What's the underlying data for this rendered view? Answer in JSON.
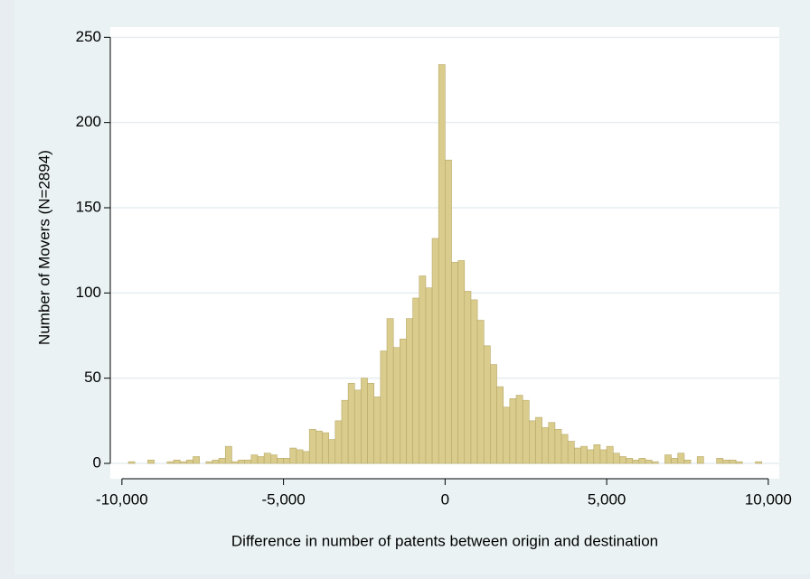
{
  "chart_data": {
    "type": "histogram",
    "x_label": "Difference in number of patents between origin and destination",
    "y_label": "Number of Movers (N=2894)",
    "bins": [
      -10000,
      -9800,
      -9600,
      -9400,
      -9200,
      -9000,
      -8800,
      -8600,
      -8400,
      -8200,
      -8000,
      -7800,
      -7600,
      -7400,
      -7200,
      -7000,
      -6800,
      -6600,
      -6400,
      -6200,
      -6000,
      -5800,
      -5600,
      -5400,
      -5200,
      -5000,
      -4800,
      -4600,
      -4400,
      -4200,
      -4000,
      -3800,
      -3600,
      -3400,
      -3200,
      -3000,
      -2800,
      -2600,
      -2400,
      -2200,
      -2000,
      -1800,
      -1600,
      -1400,
      -1200,
      -1000,
      -800,
      -600,
      -400,
      -200,
      0,
      200,
      400,
      600,
      800,
      1000,
      1200,
      1400,
      1600,
      1800,
      2000,
      2200,
      2400,
      2600,
      2800,
      3000,
      3200,
      3400,
      3600,
      3800,
      4000,
      4200,
      4400,
      4600,
      4800,
      5000,
      5200,
      5400,
      5600,
      5800,
      6000,
      6200,
      6400,
      6600,
      6800,
      7000,
      7200,
      7400,
      7600,
      7800,
      8000,
      8200,
      8400,
      8600,
      8800,
      9000,
      9200,
      9400,
      9600,
      9800,
      10000
    ],
    "counts": [
      0,
      1,
      0,
      0,
      2,
      0,
      0,
      1,
      2,
      1,
      2,
      4,
      0,
      1,
      2,
      3,
      10,
      1,
      2,
      2,
      5,
      4,
      6,
      5,
      3,
      3,
      9,
      8,
      7,
      20,
      19,
      18,
      14,
      25,
      37,
      47,
      43,
      50,
      47,
      39,
      66,
      85,
      68,
      73,
      85,
      97,
      110,
      103,
      132,
      234,
      178,
      118,
      119,
      101,
      96,
      84,
      69,
      58,
      45,
      33,
      38,
      40,
      37,
      25,
      27,
      21,
      24,
      20,
      17,
      13,
      9,
      10,
      8,
      11,
      8,
      10,
      6,
      4,
      3,
      2,
      3,
      2,
      1,
      0,
      5,
      3,
      6,
      2,
      0,
      4,
      0,
      0,
      3,
      2,
      2,
      1,
      0,
      0,
      1,
      0
    ],
    "color": "#d9cc8d",
    "edgecolor": "#b8a866",
    "xlim": [
      -10360,
      10340
    ],
    "ylim": [
      -9,
      256
    ],
    "xticks": [
      {
        "value": -10000,
        "label": "-10,000"
      },
      {
        "value": -5000,
        "label": "-5,000"
      },
      0,
      {
        "value": 5000,
        "label": "5,000"
      },
      {
        "value": 10000,
        "label": "10,000"
      }
    ],
    "yticks": [
      0,
      50,
      100,
      150,
      200,
      250
    ],
    "grid": true
  }
}
